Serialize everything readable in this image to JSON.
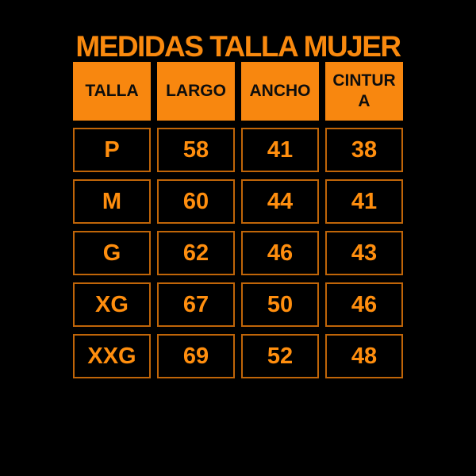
{
  "title": "MEDIDAS TALLA MUJER",
  "colors": {
    "background": "#000000",
    "accent_orange_fill": "#F8870F",
    "title_orange": "#F9890E",
    "cell_text_orange": "#FF8E0E",
    "cell_border_orange": "#C06508",
    "header_text_black": "#0D0D0D"
  },
  "chart_data": {
    "type": "table",
    "title": "MEDIDAS TALLA MUJER",
    "columns": [
      "TALLA",
      "LARGO",
      "ANCHO",
      "CINTURA"
    ],
    "rows": [
      [
        "P",
        "58",
        "41",
        "38"
      ],
      [
        "M",
        "60",
        "44",
        "41"
      ],
      [
        "G",
        "62",
        "46",
        "43"
      ],
      [
        "XG",
        "67",
        "50",
        "46"
      ],
      [
        "XXG",
        "69",
        "52",
        "48"
      ]
    ],
    "layout_hints": {
      "header_style": "solid orange fill, black bold text",
      "body_style": "black cells, thin orange border, orange bold text",
      "grid": "separated cells with black gutters"
    }
  }
}
